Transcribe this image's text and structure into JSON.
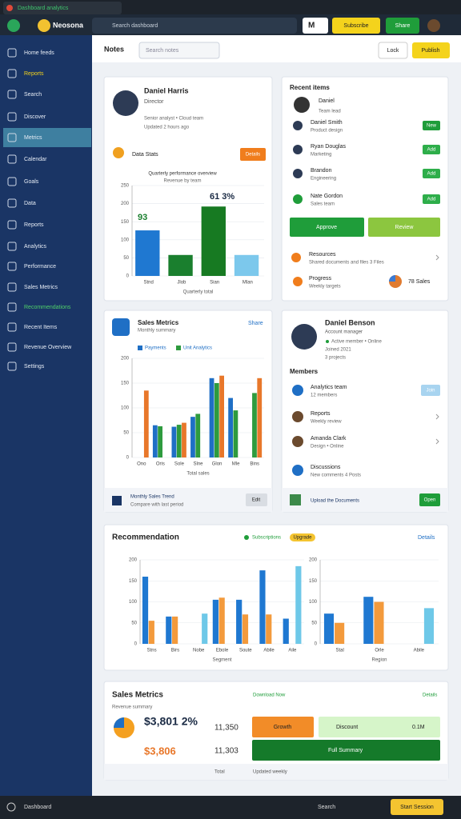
{
  "browser": {
    "tab": "Dashboard analytics",
    "app": "Neosona",
    "search": "Search dashboard",
    "menu": "M",
    "subscribe": "Subscribe",
    "share": "Share"
  },
  "sidebar": [
    "Home feeds",
    "Reports",
    "Search",
    "Discover",
    "Metrics",
    "Calendar",
    "Goals",
    "Data",
    "Reports",
    "Analytics",
    "Performance",
    "Sales Metrics",
    "Recommendations",
    "Recent Items",
    "Revenue Overview",
    "Settings"
  ],
  "header": {
    "title": "Notes",
    "search": "Search notes",
    "lock": "Lock",
    "action": "Publish"
  },
  "cardA": {
    "name": "Daniel Harris",
    "role": "Director",
    "meta": [
      "Senior analyst • Cloud team",
      "Updated 2 hours ago"
    ],
    "tag": "Data Stats",
    "button": "Details",
    "chart_title": "Quarterly performance overview",
    "chart_subtitle": "Revenue by team",
    "annotations": [
      "93",
      "61 3%"
    ]
  },
  "cardB": {
    "title": "Recent items",
    "profile": {
      "name": "Daniel",
      "sub": "Team lead"
    },
    "items": [
      {
        "name": "Daniel Smith",
        "sub": "Product design",
        "badge": "New"
      },
      {
        "name": "Ryan Douglas",
        "sub": "Marketing",
        "badge": "Add"
      },
      {
        "name": "Brandon",
        "sub": "Engineering",
        "badge": "Add"
      },
      {
        "name": "Nate Gordon",
        "sub": "Sales team",
        "badge": "Add"
      }
    ],
    "buttons": [
      "Approve",
      "Review"
    ],
    "rows": [
      {
        "name": "Resources",
        "sub": "Shared documents and files 3 Files"
      },
      {
        "name": "Progress",
        "sub": "Weekly targets"
      }
    ],
    "stat": "78 Sales"
  },
  "cardC": {
    "title": "Sales Metrics",
    "sub": "Monthly summary",
    "link": "Share",
    "footer": "Monthly Sales Trend",
    "footer_sub": "Compare with last period",
    "button": "Edit"
  },
  "cardD": {
    "name": "Daniel Benson",
    "role": "Account manager",
    "meta": [
      "Active member • Online",
      "Joined 2021",
      "3 projects"
    ],
    "members_title": "Members",
    "items": [
      {
        "name": "Analytics team",
        "sub": "12 members",
        "badge": "Join"
      },
      {
        "name": "Reports",
        "sub": "Weekly review"
      },
      {
        "name": "Amanda Clark",
        "sub": "Design • Online"
      },
      {
        "name": "Discussions",
        "sub": "New comments 4 Posts"
      }
    ],
    "footer": "Upload the Documents",
    "button": "Open"
  },
  "cardE": {
    "title": "Recommendation",
    "legend": [
      "Subscriptions",
      "Upgrade"
    ],
    "link": "Details"
  },
  "cardF": {
    "title": "Sales Metrics",
    "sub": "Revenue summary",
    "link": "Download Now",
    "link2": "Details",
    "big": "$3,801 2%",
    "big2": "$3,806",
    "num1": "11,350",
    "num2": "11,303",
    "orange": "Growth",
    "green_label": "Discount",
    "green_value": "0.1M",
    "dark": "Full Summary",
    "footer": [
      "Total",
      "Updated weekly"
    ]
  },
  "taskbar": {
    "left": "Dashboard",
    "right": "Search",
    "button": "Start Session"
  },
  "chart_data": [
    {
      "type": "bar",
      "categories": [
        "Stnd",
        "Jlob",
        "Sian",
        "Mlan"
      ],
      "values": [
        126,
        58,
        192,
        58
      ],
      "colors": [
        "#1f78d1",
        "#1a7f2e",
        "#177a22",
        "#7cc8ec"
      ],
      "ylim": [
        0,
        250
      ],
      "yticks": [
        0,
        50,
        100,
        150,
        200,
        250
      ],
      "xlabel": "Quarterly total"
    },
    {
      "type": "bar",
      "categories": [
        "Ono",
        "Oris",
        "Sole",
        "Slne",
        "Glon",
        "Mle",
        "Bins"
      ],
      "series": [
        {
          "name": "Payments",
          "color": "#1f6fc5",
          "values": [
            null,
            65,
            62,
            82,
            160,
            120,
            null
          ]
        },
        {
          "name": "Unit Analytics",
          "color": "#2e9b3e",
          "values": [
            null,
            63,
            66,
            88,
            150,
            95,
            130
          ]
        },
        {
          "color": "#e8772a",
          "values": [
            135,
            null,
            70,
            null,
            165,
            null,
            160
          ]
        }
      ],
      "ylim": [
        0,
        200
      ],
      "yticks": [
        0,
        50,
        100,
        150,
        200
      ],
      "xlabel": "Total sales"
    },
    {
      "type": "bar",
      "categories": [
        "Stns",
        "Birs",
        "Nobe",
        "Ebole",
        "Soute",
        "Abile",
        "Aile"
      ],
      "series": [
        {
          "color": "#1f78d1",
          "values": [
            160,
            65,
            null,
            105,
            105,
            175,
            60
          ]
        },
        {
          "color": "#f39a3c",
          "values": [
            55,
            65,
            null,
            110,
            70,
            70,
            null
          ]
        },
        {
          "color": "#6ec8e8",
          "values": [
            null,
            null,
            72,
            null,
            null,
            null,
            185
          ]
        }
      ],
      "ylim": [
        0,
        200
      ],
      "yticks": [
        0,
        50,
        100,
        150,
        200
      ],
      "xlabel": "Segment"
    },
    {
      "type": "bar",
      "categories": [
        "Stal",
        "Orle",
        "Abile"
      ],
      "series": [
        {
          "color": "#1f78d1",
          "values": [
            72,
            112,
            null
          ]
        },
        {
          "color": "#f39a3c",
          "values": [
            50,
            100,
            null
          ]
        },
        {
          "color": "#6ec8e8",
          "values": [
            null,
            null,
            85
          ]
        }
      ],
      "ylim": [
        0,
        200
      ],
      "yticks": [
        0,
        50,
        100,
        150,
        200
      ],
      "xlabel": "Region"
    }
  ]
}
